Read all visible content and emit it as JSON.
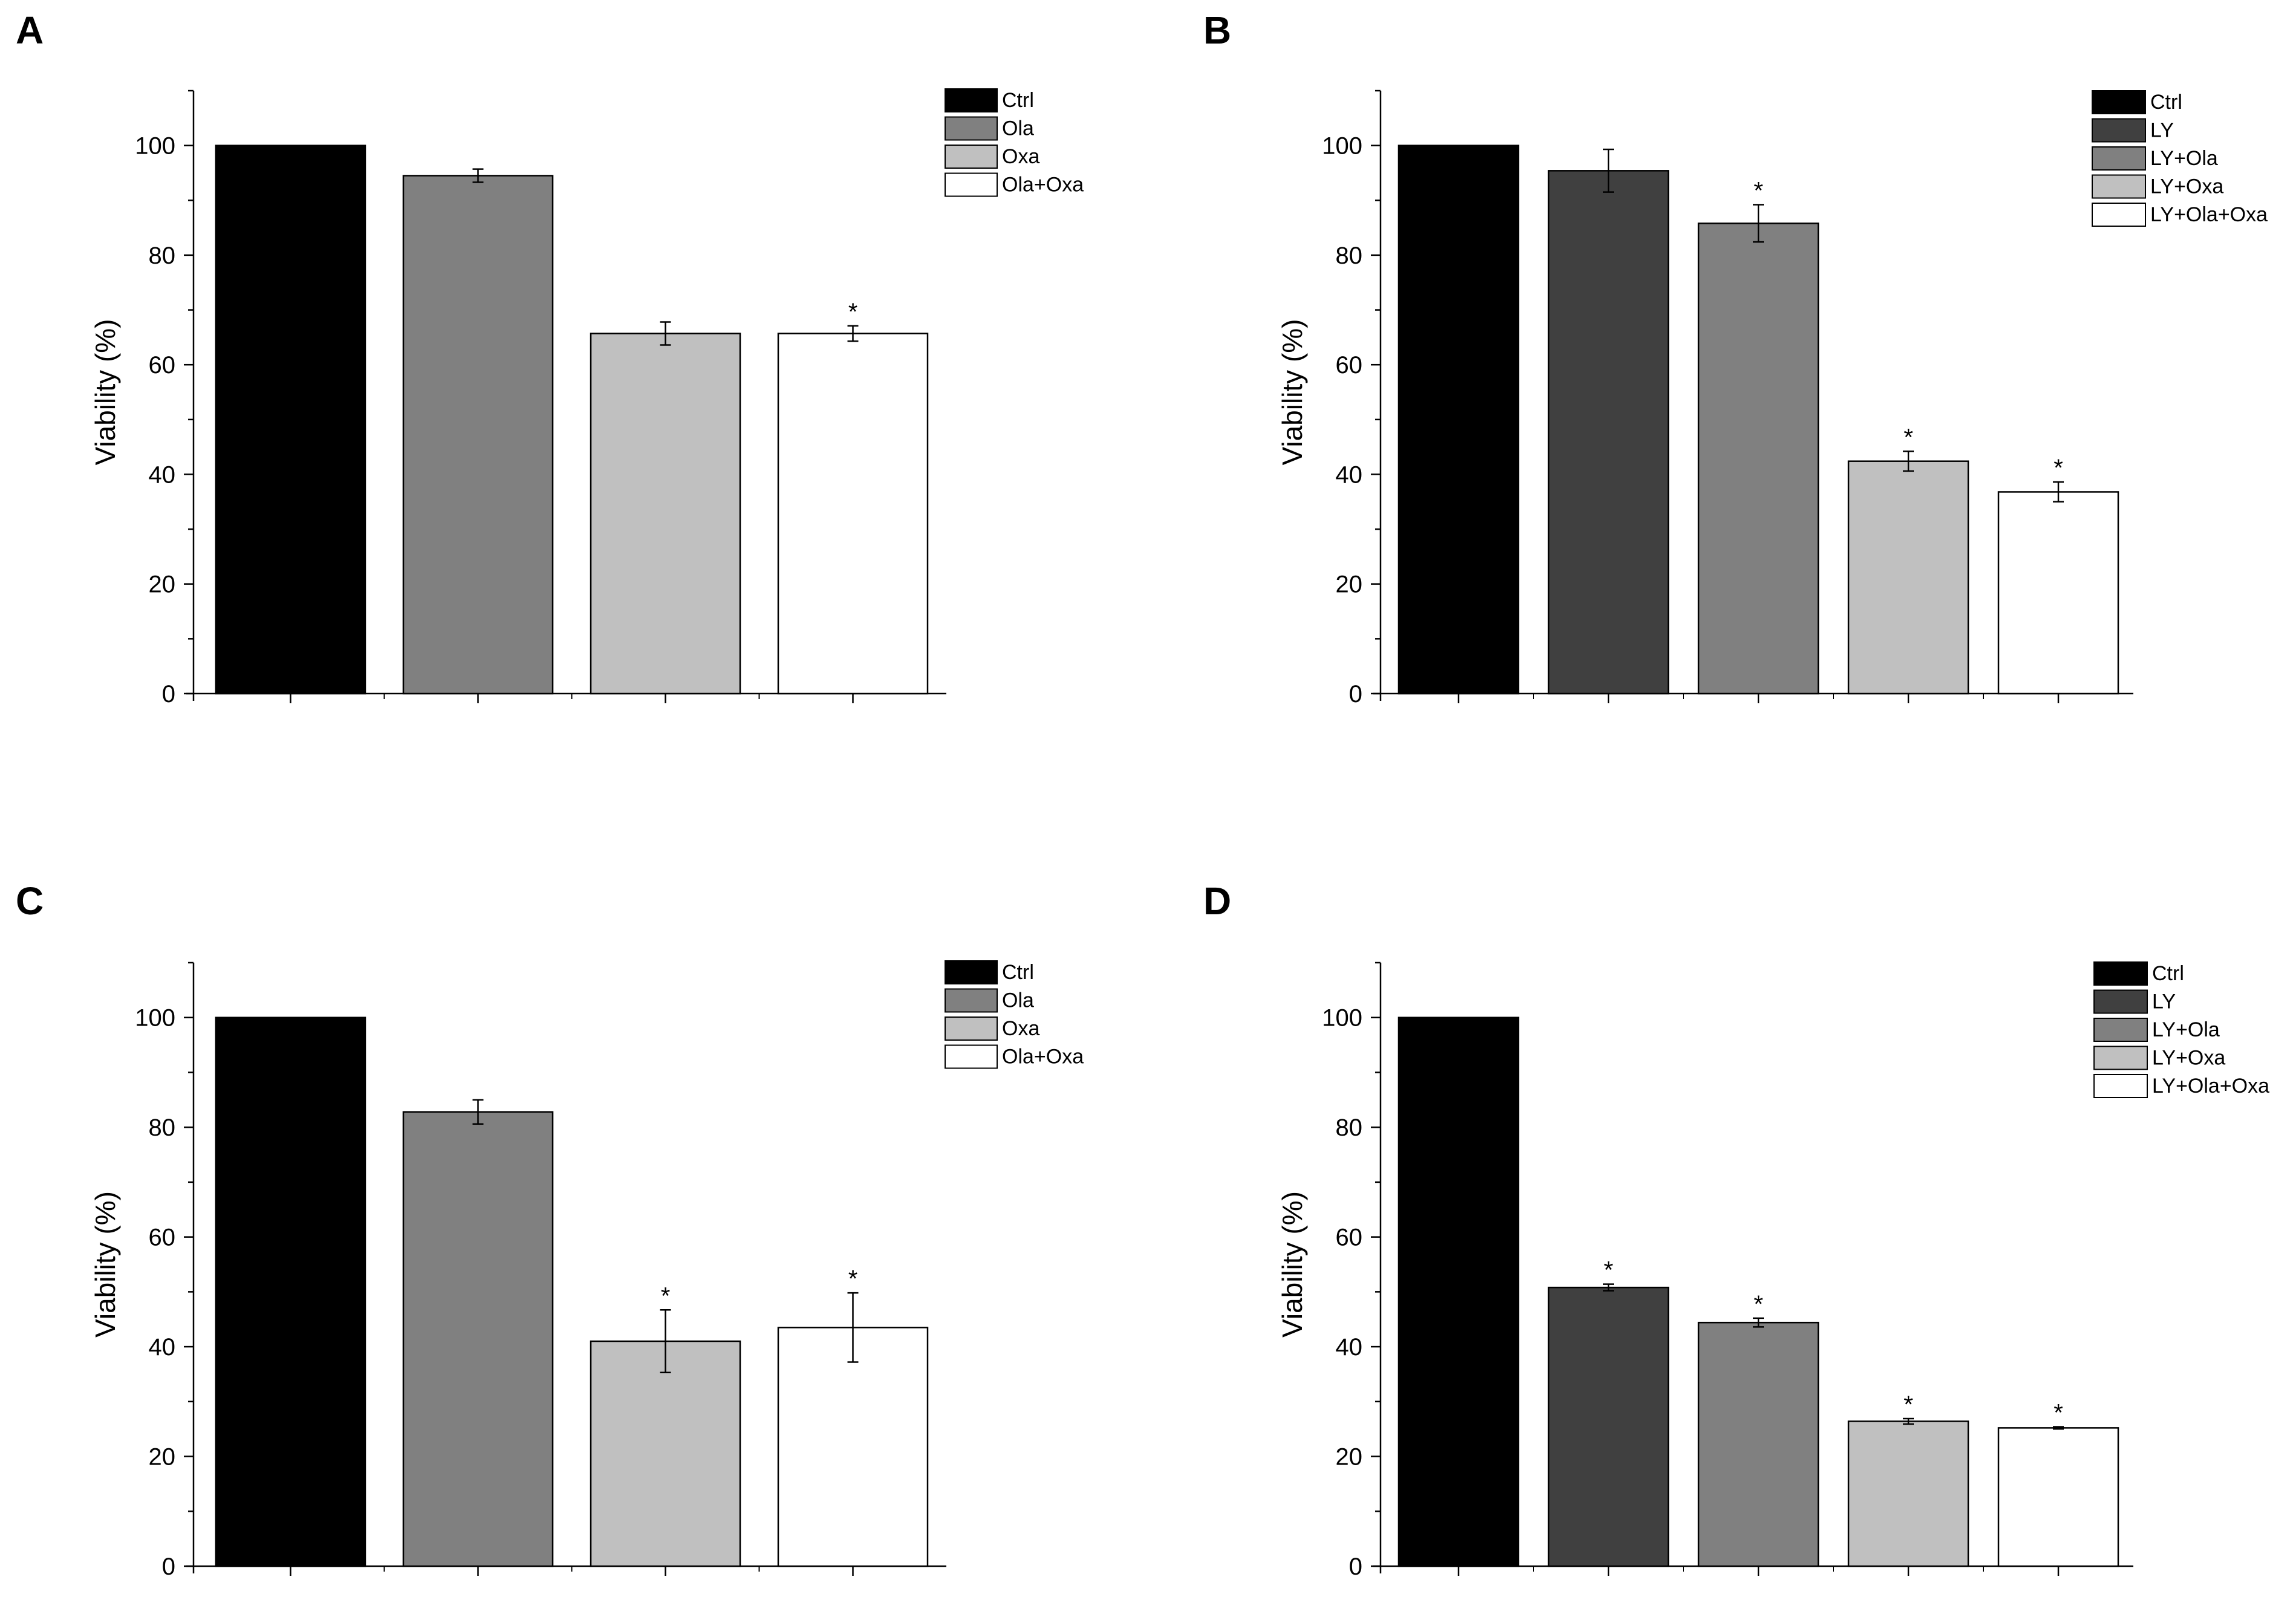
{
  "chart_data": [
    {
      "panel": "A",
      "type": "bar",
      "categories": [
        "Ctrl",
        "Ola",
        "Oxa",
        "Ola+Oxa"
      ],
      "values": [
        100,
        94.5,
        65.7,
        65.7
      ],
      "errors": [
        0,
        1.2,
        2.1,
        1.4
      ],
      "significance": [
        "",
        "",
        "",
        "*"
      ],
      "colors": [
        "#000000",
        "#808080",
        "#c0c0c0",
        "#ffffff"
      ],
      "legend": [
        "Ctrl",
        "Ola",
        "Oxa",
        "Ola+Oxa"
      ],
      "legend_position": "top-right",
      "ylabel": "Viability (%)",
      "xlabel": "",
      "ylim": [
        0,
        110
      ],
      "yticks": [
        0,
        20,
        40,
        60,
        80,
        100
      ],
      "grid": false
    },
    {
      "panel": "B",
      "type": "bar",
      "categories": [
        "Ctrl",
        "LY",
        "LY+Ola",
        "LY+Oxa",
        "LY+Ola+Oxa"
      ],
      "values": [
        100,
        95.4,
        85.8,
        42.4,
        36.8
      ],
      "errors": [
        0,
        3.9,
        3.4,
        1.8,
        1.8
      ],
      "significance": [
        "",
        "",
        "*",
        "*",
        "*"
      ],
      "colors": [
        "#000000",
        "#404040",
        "#808080",
        "#c0c0c0",
        "#ffffff"
      ],
      "legend": [
        "Ctrl",
        "LY",
        "LY+Ola",
        "LY+Oxa",
        "LY+Ola+Oxa"
      ],
      "legend_position": "top-right",
      "ylabel": "Viability (%)",
      "xlabel": "",
      "ylim": [
        0,
        110
      ],
      "yticks": [
        0,
        20,
        40,
        60,
        80,
        100
      ],
      "grid": false
    },
    {
      "panel": "C",
      "type": "bar",
      "categories": [
        "Ctrl",
        "Ola",
        "Oxa",
        "Ola+Oxa"
      ],
      "values": [
        100,
        82.8,
        41.0,
        43.5
      ],
      "errors": [
        0,
        2.2,
        5.7,
        6.3
      ],
      "significance": [
        "",
        "",
        "*",
        "*"
      ],
      "colors": [
        "#000000",
        "#808080",
        "#c0c0c0",
        "#ffffff"
      ],
      "legend": [
        "Ctrl",
        "Ola",
        "Oxa",
        "Ola+Oxa"
      ],
      "legend_position": "top-right",
      "ylabel": "Viability (%)",
      "xlabel": "",
      "ylim": [
        0,
        110
      ],
      "yticks": [
        0,
        20,
        40,
        60,
        80,
        100
      ],
      "grid": false
    },
    {
      "panel": "D",
      "type": "bar",
      "categories": [
        "Ctrl",
        "LY",
        "LY+Ola",
        "LY+Oxa",
        "LY+Ola+Oxa"
      ],
      "values": [
        100,
        50.8,
        44.4,
        26.4,
        25.2
      ],
      "errors": [
        0,
        0.6,
        0.8,
        0.5,
        0.2
      ],
      "significance": [
        "",
        "*",
        "*",
        "*",
        "*"
      ],
      "colors": [
        "#000000",
        "#404040",
        "#808080",
        "#c0c0c0",
        "#ffffff"
      ],
      "legend": [
        "Ctrl",
        "LY",
        "LY+Ola",
        "LY+Oxa",
        "LY+Ola+Oxa"
      ],
      "legend_position": "top-right",
      "ylabel": "Viability (%)",
      "xlabel": "",
      "ylim": [
        0,
        110
      ],
      "yticks": [
        0,
        20,
        40,
        60,
        80,
        100
      ],
      "grid": false
    }
  ]
}
